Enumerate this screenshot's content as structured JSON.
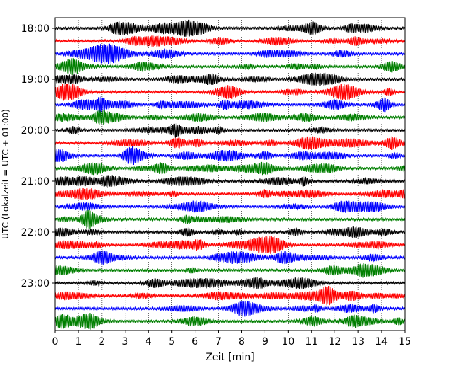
{
  "chart_data": {
    "type": "line",
    "title": "",
    "xlabel": "Zeit  [min]",
    "ylabel": "UTC (Lokalzeit = UTC + 01:00)",
    "xlim": [
      0,
      15
    ],
    "xticks": [
      "0",
      "1",
      "2",
      "3",
      "4",
      "5",
      "6",
      "7",
      "8",
      "9",
      "10",
      "11",
      "12",
      "13",
      "14",
      "15"
    ],
    "yticks": [
      {
        "label": "18:00",
        "row": 0
      },
      {
        "label": "19:00",
        "row": 4
      },
      {
        "label": "20:00",
        "row": 8
      },
      {
        "label": "21:00",
        "row": 12
      },
      {
        "label": "22:00",
        "row": 16
      },
      {
        "label": "23:00",
        "row": 20
      }
    ],
    "row_count": 24,
    "row_minutes": 15,
    "start_time": "18:00",
    "end_time": "24:00",
    "grid": {
      "x": true,
      "y": false,
      "style": "dotted"
    },
    "colors": [
      "#000000",
      "#ff0000",
      "#0000ff",
      "#007f00"
    ]
  }
}
